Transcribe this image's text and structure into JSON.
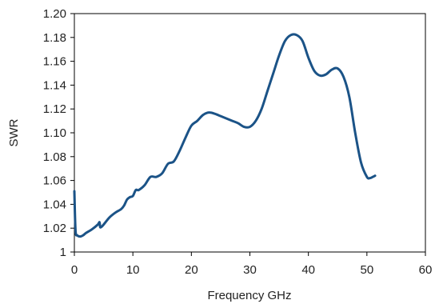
{
  "chart_data": {
    "type": "line",
    "title": "",
    "xlabel": "Frequency GHz",
    "ylabel": "SWR",
    "xlim": [
      0,
      60
    ],
    "ylim": [
      1.0,
      1.2
    ],
    "xticks": [
      0,
      10,
      20,
      30,
      40,
      50,
      60
    ],
    "xtick_labels": [
      "0",
      "10",
      "20",
      "30",
      "40",
      "50",
      "60"
    ],
    "yticks": [
      1.0,
      1.02,
      1.04,
      1.06,
      1.08,
      1.1,
      1.12,
      1.14,
      1.16,
      1.18,
      1.2
    ],
    "ytick_labels": [
      "1",
      "1.02",
      "1.04",
      "1.06",
      "1.08",
      "1.10",
      "1.12",
      "1.14",
      "1.16",
      "1.18",
      "1.20"
    ],
    "grid": false,
    "legend": "none",
    "series": [
      {
        "color": "#1b5387",
        "x": [
          0.0,
          0.2,
          0.5,
          1.0,
          1.5,
          2.0,
          3.0,
          4.0,
          4.3,
          4.4,
          4.6,
          5.0,
          6.0,
          7.0,
          8.0,
          8.5,
          9.0,
          9.5,
          10.0,
          10.5,
          11.0,
          12.0,
          13.0,
          14.0,
          15.0,
          16.0,
          17.0,
          18.0,
          19.0,
          20.0,
          21.0,
          22.0,
          23.0,
          24.0,
          25.0,
          26.0,
          27.0,
          28.0,
          29.0,
          30.0,
          31.0,
          32.0,
          33.0,
          34.0,
          35.0,
          36.0,
          37.0,
          38.0,
          39.0,
          40.0,
          41.0,
          42.0,
          43.0,
          44.0,
          45.0,
          46.0,
          47.0,
          48.0,
          49.0,
          50.0,
          50.5,
          51.0,
          51.4
        ],
        "y": [
          1.051,
          1.018,
          1.014,
          1.013,
          1.014,
          1.016,
          1.019,
          1.023,
          1.025,
          1.021,
          1.021,
          1.023,
          1.029,
          1.033,
          1.036,
          1.039,
          1.044,
          1.046,
          1.047,
          1.052,
          1.052,
          1.056,
          1.063,
          1.063,
          1.066,
          1.074,
          1.076,
          1.085,
          1.096,
          1.106,
          1.11,
          1.115,
          1.117,
          1.116,
          1.114,
          1.112,
          1.11,
          1.108,
          1.105,
          1.105,
          1.11,
          1.12,
          1.135,
          1.15,
          1.165,
          1.177,
          1.182,
          1.182,
          1.177,
          1.163,
          1.152,
          1.148,
          1.149,
          1.153,
          1.154,
          1.147,
          1.13,
          1.1,
          1.075,
          1.063,
          1.062,
          1.063,
          1.064
        ]
      }
    ]
  }
}
